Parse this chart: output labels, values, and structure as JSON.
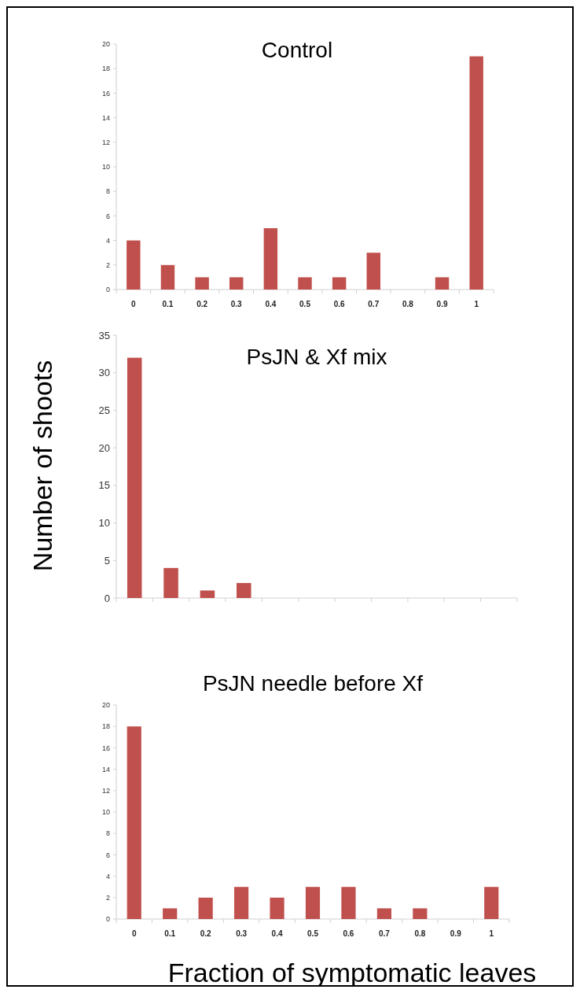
{
  "chart_data": [
    {
      "type": "bar",
      "title": "Control",
      "categories": [
        "0",
        "0.1",
        "0.2",
        "0.3",
        "0.4",
        "0.5",
        "0.6",
        "0.7",
        "0.8",
        "0.9",
        "1"
      ],
      "values": [
        4,
        2,
        1,
        1,
        5,
        1,
        1,
        3,
        0,
        1,
        19
      ],
      "color": "#c0504d",
      "ylim": [
        0,
        20
      ],
      "yticks": [
        0,
        2,
        4,
        6,
        8,
        10,
        12,
        14,
        16,
        18,
        20
      ]
    },
    {
      "type": "bar",
      "title": "PsJN & Xf mix",
      "ylabel": "Number of shoots",
      "categories": [
        null,
        null,
        null,
        null,
        null,
        null,
        null,
        null,
        null,
        null,
        null
      ],
      "values": [
        32,
        4,
        1,
        2,
        0,
        0,
        0,
        0,
        0,
        0,
        0
      ],
      "color": "#c0504d",
      "ylim": [
        0,
        35
      ],
      "yticks": [
        0,
        5,
        10,
        15,
        20,
        25,
        30,
        35
      ],
      "tick_labels": "y"
    },
    {
      "type": "bar",
      "title": "PsJN needle before Xf",
      "xlabel": "Fraction of symptomatic leaves",
      "categories": [
        "0",
        "0.1",
        "0.2",
        "0.3",
        "0.4",
        "0.5",
        "0.6",
        "0.7",
        "0.8",
        "0.9",
        "1"
      ],
      "values": [
        18,
        1,
        2,
        3,
        2,
        3,
        3,
        1,
        1,
        0,
        3
      ],
      "color": "#c0504d",
      "ylim": [
        0,
        20
      ],
      "yticks": [
        0,
        2,
        4,
        6,
        8,
        10,
        12,
        14,
        16,
        18,
        20
      ]
    }
  ]
}
